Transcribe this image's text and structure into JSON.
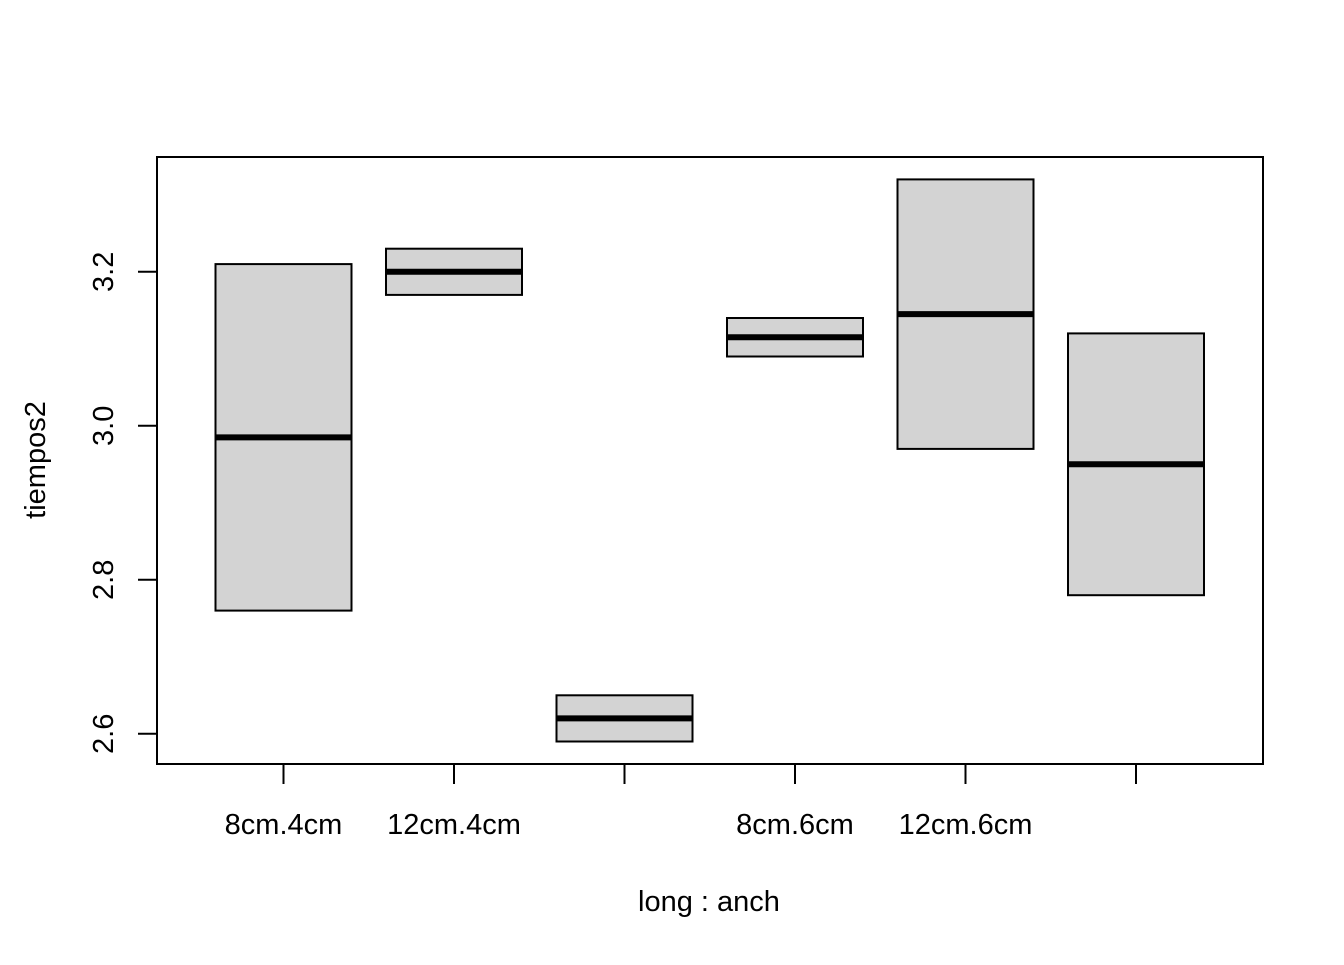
{
  "chart_data": {
    "type": "boxplot",
    "title": "",
    "xlabel": "long : anch",
    "ylabel": "tiempos2",
    "ylim": [
      2.56,
      3.35
    ],
    "yticks": [
      2.6,
      2.8,
      3.0,
      3.2
    ],
    "ytick_labels": [
      "2.6",
      "2.8",
      "3.0",
      "3.2"
    ],
    "categories": [
      "8cm.4cm",
      "12cm.4cm",
      "",
      "8cm.6cm",
      "12cm.6cm",
      ""
    ],
    "boxes": [
      {
        "q1": 2.76,
        "median": 2.985,
        "q3": 3.21
      },
      {
        "q1": 3.17,
        "median": 3.2,
        "q3": 3.23
      },
      {
        "q1": 2.59,
        "median": 2.62,
        "q3": 2.65
      },
      {
        "q1": 3.09,
        "median": 3.115,
        "q3": 3.14
      },
      {
        "q1": 2.97,
        "median": 3.145,
        "q3": 3.32
      },
      {
        "q1": 2.78,
        "median": 2.95,
        "q3": 3.12
      }
    ],
    "colors": {
      "box_fill": "#d3d3d3",
      "stroke": "#000000"
    }
  }
}
